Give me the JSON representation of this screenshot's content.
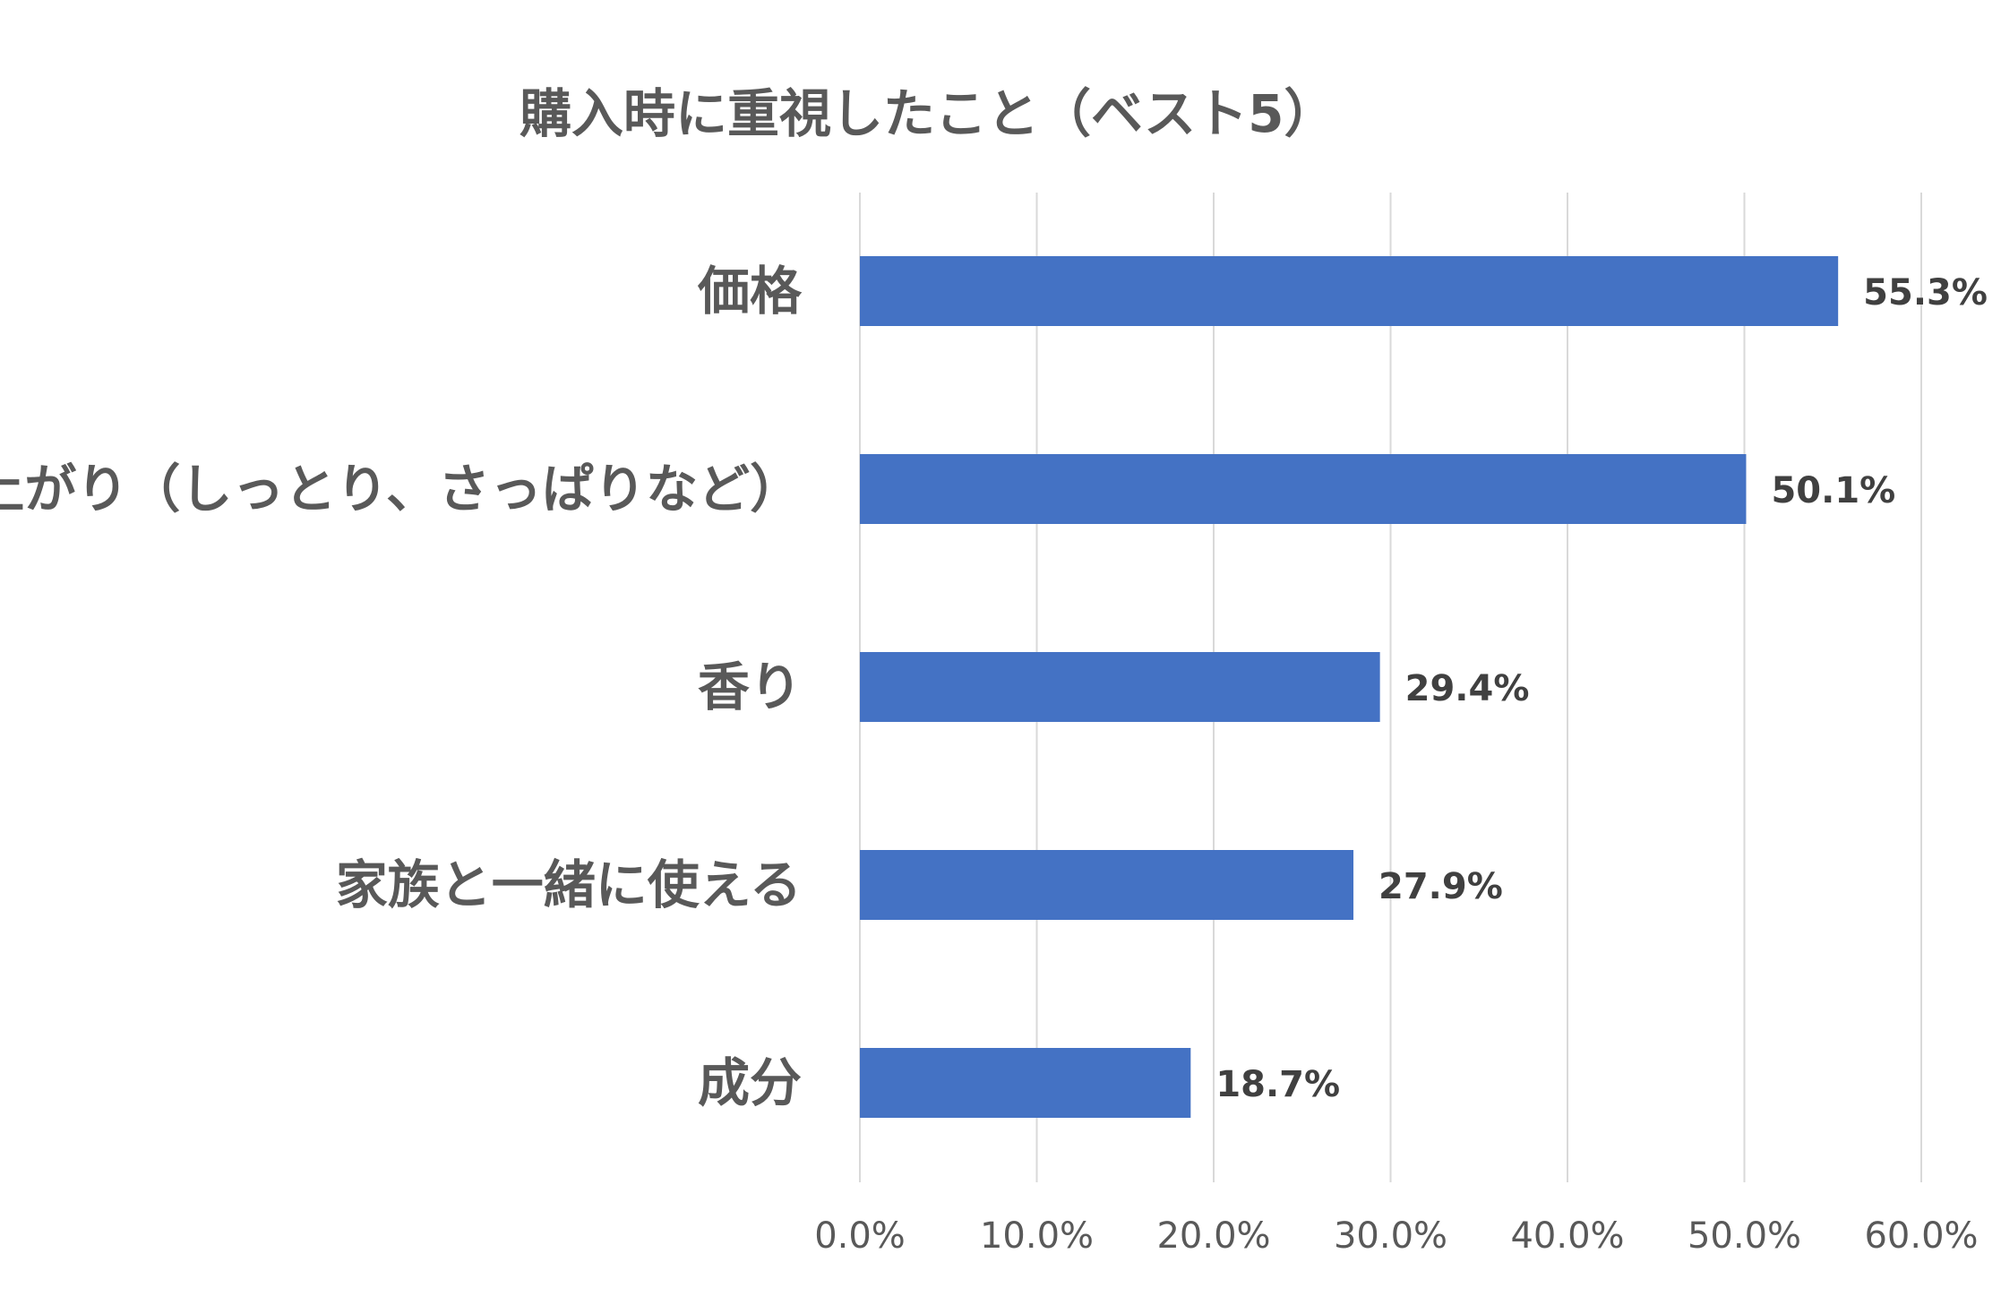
{
  "chart_data": {
    "type": "bar",
    "orientation": "horizontal",
    "title": "購入時に重視したこと（ベスト5）",
    "categories": [
      "価格",
      "仕上がり（しっとり、さっぱりなど）",
      "香り",
      "家族と一緒に使える",
      "成分"
    ],
    "values": [
      55.3,
      50.1,
      29.4,
      27.9,
      18.7
    ],
    "data_labels": [
      "55.3%",
      "50.1%",
      "29.4%",
      "27.9%",
      "18.7%"
    ],
    "xlim": [
      0,
      60
    ],
    "x_ticks": [
      0,
      10,
      20,
      30,
      40,
      50,
      60
    ],
    "x_tick_labels": [
      "0.0%",
      "10.0%",
      "20.0%",
      "30.0%",
      "40.0%",
      "50.0%",
      "60.0%"
    ],
    "grid": true,
    "legend": "none",
    "bar_color": "#4472C4",
    "grid_color": "#D9D9D9"
  }
}
